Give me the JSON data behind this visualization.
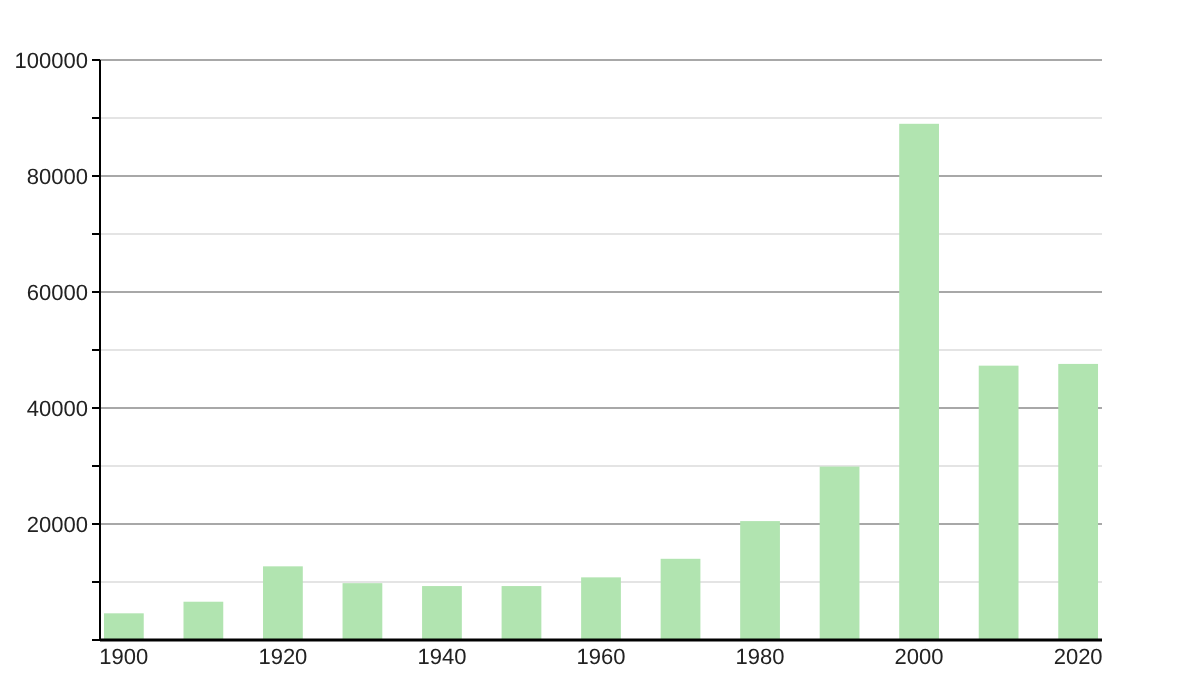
{
  "chart_data": {
    "type": "bar",
    "x": [
      1900,
      1910,
      1920,
      1930,
      1940,
      1950,
      1960,
      1970,
      1980,
      1990,
      2000,
      2010,
      2020
    ],
    "values": [
      4600,
      6600,
      12700,
      9800,
      9300,
      9300,
      10800,
      14000,
      20500,
      29900,
      89000,
      47300,
      47600
    ],
    "color": "#b1e4b0",
    "xlim": [
      1897,
      2023
    ],
    "xticks": [
      1900,
      1920,
      1940,
      1960,
      1980,
      2000,
      2020
    ],
    "ylim": [
      0,
      100000
    ],
    "yticks": [
      {
        "value": 0,
        "label": null
      },
      {
        "value": 10000,
        "label": null
      },
      20000,
      {
        "value": 30000,
        "label": null
      },
      40000,
      {
        "value": 50000,
        "label": null
      },
      60000,
      {
        "value": 70000,
        "label": null
      },
      80000,
      {
        "value": 90000,
        "label": null
      },
      100000
    ],
    "grid": "y"
  }
}
